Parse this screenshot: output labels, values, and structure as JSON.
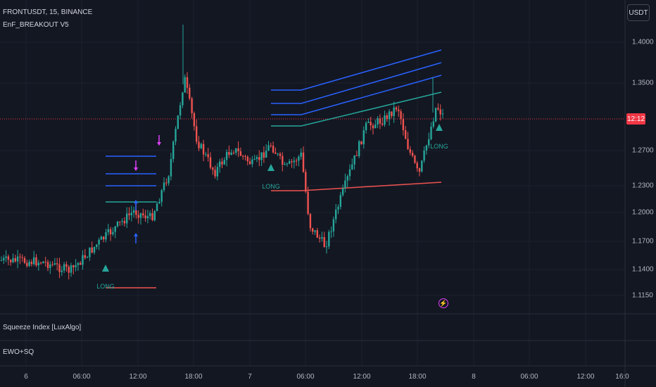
{
  "header": {
    "symbol_line": "FRONTUSDT, 15, BINANCE",
    "indicator_name": "EnF_BREAKOUT V5"
  },
  "currency_button": "USDT",
  "price_axis": [
    "1.4000",
    "1.3500",
    "1.2700",
    "1.2300",
    "1.2000",
    "1.1700",
    "1.1400",
    "1.1150"
  ],
  "countdown": "12:12",
  "time_axis": [
    "6",
    "06:00",
    "12:00",
    "18:00",
    "7",
    "06:00",
    "12:00",
    "18:00",
    "8",
    "06:00",
    "12:00",
    "16:0"
  ],
  "panes": {
    "squeeze": "Squeeze Index [LuxAlgo]",
    "ewo": "EWO+SQ"
  },
  "signals": [
    "LONG",
    "LONG",
    "LONG"
  ],
  "alert_icon": "lightning-icon",
  "colors": {
    "background": "#131722",
    "bull": "#26a69a",
    "bear": "#ef5350",
    "level_blue": "#2962ff",
    "level_green": "#26a69a",
    "level_red": "#ef5350",
    "marker_purple": "#e040fb",
    "last_price": "#f23645"
  }
}
